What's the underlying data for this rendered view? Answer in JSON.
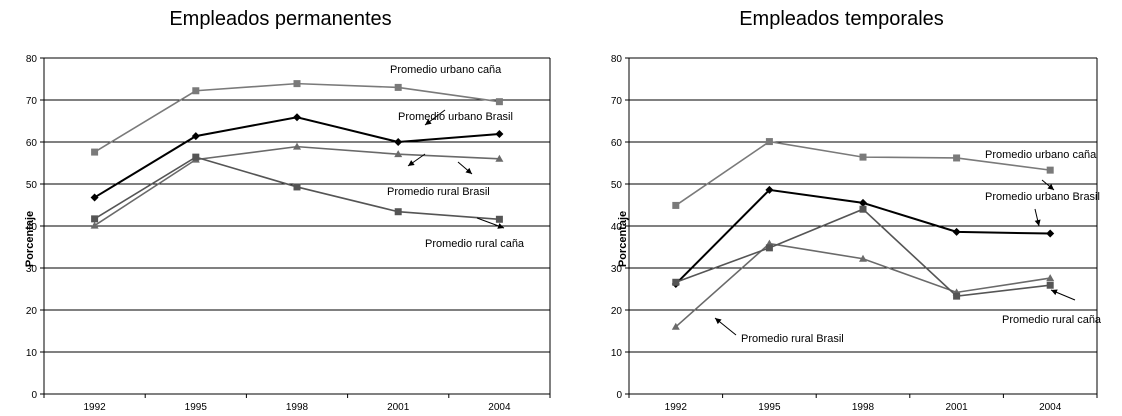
{
  "chart_data": [
    {
      "type": "line",
      "title": "Empleados permanentes",
      "xlabel": "",
      "ylabel": "Porcentaje",
      "categories": [
        "1992",
        "1995",
        "1998",
        "2001",
        "2004"
      ],
      "ylim": [
        0,
        80
      ],
      "yticks": [
        0,
        10,
        20,
        30,
        40,
        50,
        60,
        70,
        80
      ],
      "grid": true,
      "series": [
        {
          "name": "Promedio urbano caña",
          "marker": "square",
          "color": "#7a7a7a",
          "values": [
            57.6,
            72.2,
            73.9,
            73.0,
            69.6
          ]
        },
        {
          "name": "Promedio urbano Brasil",
          "marker": "diamond",
          "color": "#000000",
          "values": [
            46.8,
            61.4,
            65.9,
            60.0,
            61.9
          ]
        },
        {
          "name": "Promedio rural Brasil",
          "marker": "triangle",
          "color": "#6a6a6a",
          "values": [
            40.1,
            55.8,
            58.9,
            57.1,
            56.0
          ]
        },
        {
          "name": "Promedio rural caña",
          "marker": "square",
          "color": "#555555",
          "values": [
            41.7,
            56.4,
            49.3,
            43.4,
            41.6
          ]
        }
      ],
      "annotations": [
        {
          "text": "Promedio urbano caña",
          "series": 0
        },
        {
          "text": "Promedio urbano Brasil",
          "series": 1
        },
        {
          "text": "Promedio rural Brasil",
          "series": 2
        },
        {
          "text": "Promedio rural caña",
          "series": 3
        }
      ]
    },
    {
      "type": "line",
      "title": "Empleados temporales",
      "xlabel": "",
      "ylabel": "Porcentaje",
      "categories": [
        "1992",
        "1995",
        "1998",
        "2001",
        "2004"
      ],
      "ylim": [
        0,
        80
      ],
      "yticks": [
        0,
        10,
        20,
        30,
        40,
        50,
        60,
        70,
        80
      ],
      "grid": true,
      "series": [
        {
          "name": "Promedio urbano caña",
          "marker": "square",
          "color": "#7a7a7a",
          "values": [
            44.9,
            60.1,
            56.4,
            56.2,
            53.3
          ]
        },
        {
          "name": "Promedio urbano Brasil",
          "marker": "diamond",
          "color": "#000000",
          "values": [
            26.2,
            48.6,
            45.5,
            38.6,
            38.2
          ]
        },
        {
          "name": "Promedio rural Brasil",
          "marker": "triangle",
          "color": "#6a6a6a",
          "values": [
            16.0,
            35.8,
            32.2,
            24.2,
            27.6
          ]
        },
        {
          "name": "Promedio rural caña",
          "marker": "square",
          "color": "#555555",
          "values": [
            26.6,
            34.8,
            44.0,
            23.3,
            25.9
          ]
        }
      ],
      "annotations": [
        {
          "text": "Promedio urbano caña",
          "series": 0
        },
        {
          "text": "Promedio urbano Brasil",
          "series": 1
        },
        {
          "text": "Promedio rural Brasil",
          "series": 2
        },
        {
          "text": "Promedio rural caña",
          "series": 3
        }
      ]
    }
  ]
}
